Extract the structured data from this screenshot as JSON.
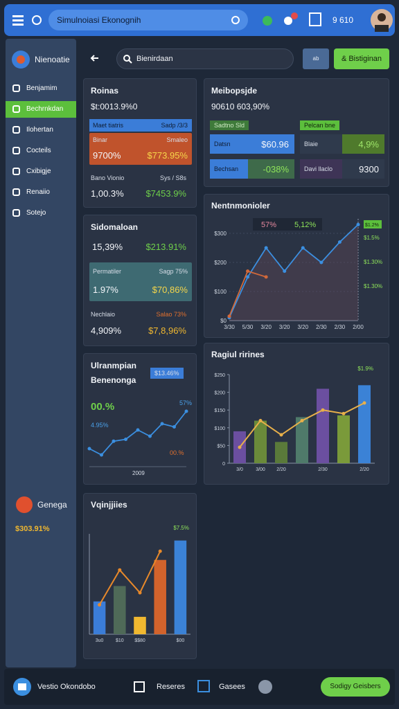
{
  "topbar": {
    "search": "Simulnoiasi Ekonognih",
    "status": "9 610"
  },
  "sidebar": {
    "title": "Nienoatie",
    "items": [
      "Benjamim",
      "Bechrnkdan",
      "Ilohertan",
      "Cocteils",
      "Cxibigje",
      "Renaiio",
      "Sotejo"
    ],
    "footer_title": "Genega",
    "footer_value": "$303.91%"
  },
  "toolbar": {
    "search": "Bienirdaan",
    "button_small": "ab",
    "button": "& Bistiginan"
  },
  "card1": {
    "title": "Roinas",
    "value": "$t:0013.9%0",
    "bar_left": "Maet tiatris",
    "bar_right": "Sadp /3/3",
    "box_left": "Binar",
    "box_right": "Smaleo",
    "box_value_left": "9700%",
    "box_value_right": "$773.95%",
    "row_left": "Bano Vionio",
    "row_right": "Sys / S8s",
    "row_value_left": "1,00.3%",
    "row_value_right": "$7453.9%"
  },
  "card2": {
    "title": "Meibopsjde",
    "value": "90610 603,90%",
    "tag_left": "Sadtno Sld",
    "tag_right": "Pelcan bne",
    "tiles": [
      {
        "label": "Datsn",
        "value": "$60.96"
      },
      {
        "label": "Blaie",
        "value": "4,9%"
      },
      {
        "label": "Bechsan",
        "value": "-038%"
      },
      {
        "label": "Davi llaclo",
        "value": "9300"
      }
    ]
  },
  "card3": {
    "title": "Sidomaloan",
    "value_left": "15,39%",
    "value_right": "$213.91%",
    "box_left": "Permatiler",
    "box_right": "Sagp 75%",
    "box_value_left": "1.97%",
    "box_value_right": "$70,86%",
    "row_left": "Nechlaio",
    "row_right": "Salao 73%",
    "row_value_left": "4,909%",
    "row_value_right": "$7,8,96%"
  },
  "card5": {
    "title": "Ulranmpian",
    "subtitle": "Benenonga",
    "tag": "$13.46%",
    "big": "00.%",
    "left": "4.95%",
    "right_top": "57%",
    "right_bottom": "00.%",
    "footer": "2009",
    "line": {
      "values": [
        20,
        10,
        32,
        35,
        50,
        40,
        60,
        55,
        80
      ],
      "ylim": [
        0,
        100
      ],
      "color": "#3b8fe0"
    }
  },
  "line_chart": {
    "type": "line",
    "title": "Nentnmonioler",
    "legend": [
      "57%",
      "5,12%"
    ],
    "tag": "$1.2%",
    "categories": [
      "3/30",
      "5/30",
      "3/20",
      "3/20",
      "3/20",
      "2/30",
      "2/30",
      "2/00"
    ],
    "series": [
      {
        "color": "#3b8fe0",
        "values": [
          10,
          150,
          250,
          170,
          250,
          200,
          270,
          330
        ]
      },
      {
        "color": "#d2693a",
        "values": [
          15,
          170,
          150,
          null,
          null,
          null,
          null,
          null
        ]
      }
    ],
    "ylim": [
      0,
      350
    ],
    "yticks": [
      {
        "value": 0,
        "label": "$0"
      },
      {
        "value": 100,
        "label": "$100"
      },
      {
        "value": 200,
        "label": "$200"
      },
      {
        "value": 300,
        "label": "$300"
      }
    ],
    "right_labels": [
      "$1.5%",
      "$1.30%",
      "$1.30%"
    ]
  },
  "bar_chart": {
    "type": "combo",
    "title": "Ragiul rirines",
    "categories": [
      "3/0",
      "3/00",
      "2/20",
      null,
      "2/30",
      null,
      "2/20"
    ],
    "values": [
      90,
      120,
      60,
      130,
      210,
      135,
      220
    ],
    "colors": [
      "#6b4fa0",
      "#6a8a3a",
      "#5a7a3a",
      "#4f7a6a",
      "#6b4fa0",
      "#7a9a3a",
      "#3b82d6"
    ],
    "line": {
      "color": "#e8b04a",
      "values": [
        45,
        120,
        80,
        120,
        150,
        140,
        170
      ]
    },
    "ylim": [
      0,
      250
    ],
    "yticks": [
      0,
      {
        "value": 50,
        "label": "$50"
      },
      {
        "value": 100,
        "label": "$100"
      },
      {
        "value": 150,
        "label": "$150"
      },
      {
        "value": 200,
        "label": "$200"
      },
      {
        "value": 250,
        "label": "$250"
      }
    ],
    "annotation": "$1.9%"
  },
  "combo_chart": {
    "type": "combo",
    "title": "Vqinjjiies",
    "categories": [
      "3u0",
      "$10",
      "$$80",
      null,
      "$00"
    ],
    "values": [
      49,
      72,
      26,
      111,
      140
    ],
    "colors": [
      "#3b7dd8",
      "#4f6a58",
      "#f0b830",
      "#d2632c",
      "#3b82d6"
    ],
    "line": {
      "color": "#e8892a",
      "values": [
        44,
        96,
        62,
        124,
        null
      ]
    },
    "ylim": [
      0,
      150
    ],
    "annotation": "$7.5%"
  },
  "bottombar": {
    "app": "Vestio Okondobo",
    "tab1": "Reseres",
    "tab2": "Gasees",
    "button": "Sodigy Geisbers"
  }
}
